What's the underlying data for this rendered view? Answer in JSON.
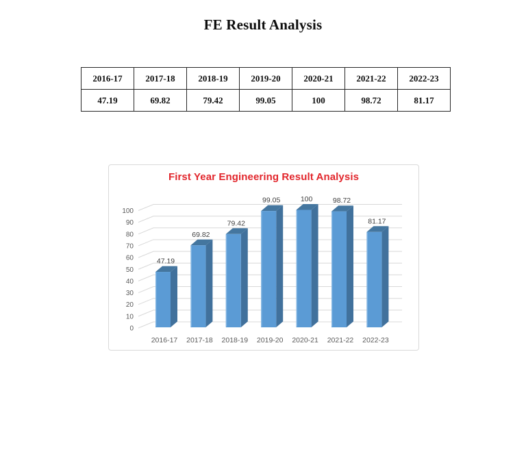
{
  "page": {
    "title": "FE Result Analysis"
  },
  "table": {
    "headers": [
      "2016-17",
      "2017-18",
      "2018-19",
      "2019-20",
      "2020-21",
      "2021-22",
      "2022-23"
    ],
    "values": [
      "47.19",
      "69.82",
      "79.42",
      "99.05",
      "100",
      "98.72",
      "81.17"
    ]
  },
  "chart": {
    "title": "First Year Engineering Result Analysis",
    "title_color": "#e2262c"
  },
  "chart_data": {
    "type": "bar",
    "style": "3d",
    "title": "First Year Engineering Result Analysis",
    "categories": [
      "2016-17",
      "2017-18",
      "2018-19",
      "2019-20",
      "2020-21",
      "2021-22",
      "2022-23"
    ],
    "values": [
      47.19,
      69.82,
      79.42,
      99.05,
      100,
      98.72,
      81.17
    ],
    "data_labels": [
      "47.19",
      "69.82",
      "79.42",
      "99.05",
      "100",
      "98.72",
      "81.17"
    ],
    "xlabel": "",
    "ylabel": "",
    "ylim": [
      0,
      100
    ],
    "ytick_step": 10,
    "grid": true,
    "legend": "none",
    "colors": {
      "bar_front": "#5b9bd5",
      "bar_side": "#41719c",
      "bar_top": "#44769f",
      "bar_left_highlight": "#83b5e2",
      "gridline": "#d8d8d8",
      "axis_text": "#595959",
      "data_label_text": "#3f3f3f"
    }
  }
}
